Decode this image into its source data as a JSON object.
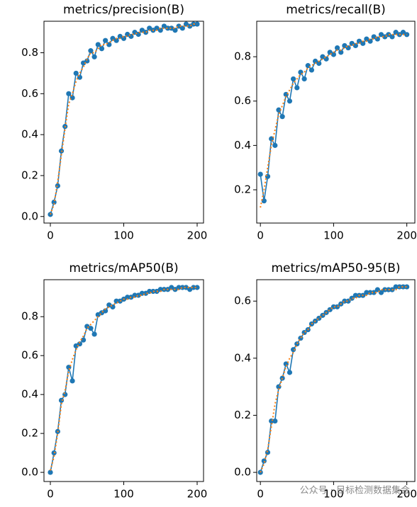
{
  "chart_data": [
    {
      "type": "line",
      "title": "metrics/precision(B)",
      "x": [
        0,
        5,
        10,
        15,
        20,
        25,
        30,
        35,
        40,
        45,
        50,
        55,
        60,
        65,
        70,
        75,
        80,
        85,
        90,
        95,
        100,
        105,
        110,
        115,
        120,
        125,
        130,
        135,
        140,
        145,
        150,
        155,
        160,
        165,
        170,
        175,
        180,
        185,
        190,
        195,
        200
      ],
      "series": [
        {
          "color": "#1f77b4",
          "marker": "o",
          "values": [
            0.01,
            0.07,
            0.15,
            0.32,
            0.44,
            0.6,
            0.58,
            0.7,
            0.68,
            0.75,
            0.76,
            0.81,
            0.78,
            0.84,
            0.82,
            0.86,
            0.84,
            0.87,
            0.86,
            0.88,
            0.87,
            0.89,
            0.88,
            0.9,
            0.89,
            0.91,
            0.9,
            0.92,
            0.91,
            0.92,
            0.91,
            0.93,
            0.92,
            0.92,
            0.91,
            0.93,
            0.92,
            0.94,
            0.93,
            0.94,
            0.94
          ]
        },
        {
          "color": "#ff7f0e",
          "linestyle": "dotted",
          "values": [
            0.01,
            0.06,
            0.17,
            0.3,
            0.43,
            0.55,
            0.6,
            0.66,
            0.7,
            0.73,
            0.77,
            0.8,
            0.8,
            0.82,
            0.84,
            0.84,
            0.85,
            0.86,
            0.87,
            0.87,
            0.88,
            0.88,
            0.89,
            0.89,
            0.9,
            0.9,
            0.9,
            0.91,
            0.91,
            0.91,
            0.92,
            0.92,
            0.92,
            0.92,
            0.92,
            0.93,
            0.93,
            0.93,
            0.93,
            0.94,
            0.94
          ]
        }
      ],
      "xlim": [
        -8.7,
        208.7
      ],
      "xticks": [
        0,
        100,
        200
      ],
      "ylim": [
        -0.032,
        0.954
      ],
      "yticks": [
        {
          "value": 0,
          "label": "0.0"
        },
        0.2,
        0.4,
        0.6,
        0.8
      ],
      "grid": false
    },
    {
      "type": "line",
      "title": "metrics/recall(B)",
      "x": [
        0,
        5,
        10,
        15,
        20,
        25,
        30,
        35,
        40,
        45,
        50,
        55,
        60,
        65,
        70,
        75,
        80,
        85,
        90,
        95,
        100,
        105,
        110,
        115,
        120,
        125,
        130,
        135,
        140,
        145,
        150,
        155,
        160,
        165,
        170,
        175,
        180,
        185,
        190,
        195,
        200
      ],
      "series": [
        {
          "color": "#1f77b4",
          "marker": "o",
          "values": [
            0.27,
            0.15,
            0.26,
            0.43,
            0.4,
            0.56,
            0.53,
            0.63,
            0.6,
            0.7,
            0.66,
            0.73,
            0.7,
            0.76,
            0.74,
            0.78,
            0.77,
            0.8,
            0.79,
            0.82,
            0.81,
            0.84,
            0.82,
            0.85,
            0.84,
            0.86,
            0.85,
            0.87,
            0.86,
            0.88,
            0.87,
            0.89,
            0.88,
            0.9,
            0.89,
            0.9,
            0.89,
            0.91,
            0.9,
            0.91,
            0.9
          ]
        },
        {
          "color": "#ff7f0e",
          "linestyle": "dotted",
          "values": [
            0.12,
            0.2,
            0.3,
            0.4,
            0.47,
            0.54,
            0.58,
            0.62,
            0.65,
            0.68,
            0.7,
            0.72,
            0.73,
            0.75,
            0.76,
            0.77,
            0.78,
            0.79,
            0.8,
            0.81,
            0.82,
            0.83,
            0.83,
            0.84,
            0.85,
            0.85,
            0.86,
            0.86,
            0.87,
            0.87,
            0.88,
            0.88,
            0.89,
            0.89,
            0.89,
            0.9,
            0.9,
            0.9,
            0.9,
            0.9,
            0.9
          ]
        }
      ],
      "xlim": [
        -5,
        211
      ],
      "xticks": [
        0,
        100,
        200
      ],
      "ylim": [
        0.05,
        0.96
      ],
      "yticks": [
        0.2,
        0.4,
        0.6,
        0.8
      ],
      "grid": false
    },
    {
      "type": "line",
      "title": "metrics/mAP50(B)",
      "x": [
        0,
        5,
        10,
        15,
        20,
        25,
        30,
        35,
        40,
        45,
        50,
        55,
        60,
        65,
        70,
        75,
        80,
        85,
        90,
        95,
        100,
        105,
        110,
        115,
        120,
        125,
        130,
        135,
        140,
        145,
        150,
        155,
        160,
        165,
        170,
        175,
        180,
        185,
        190,
        195,
        200
      ],
      "series": [
        {
          "color": "#1f77b4",
          "marker": "o",
          "values": [
            0.0,
            0.1,
            0.21,
            0.37,
            0.4,
            0.54,
            0.47,
            0.65,
            0.66,
            0.68,
            0.75,
            0.74,
            0.71,
            0.81,
            0.82,
            0.83,
            0.86,
            0.85,
            0.88,
            0.88,
            0.89,
            0.9,
            0.9,
            0.91,
            0.91,
            0.92,
            0.92,
            0.93,
            0.93,
            0.93,
            0.94,
            0.94,
            0.94,
            0.95,
            0.94,
            0.95,
            0.95,
            0.95,
            0.94,
            0.95,
            0.95
          ]
        },
        {
          "color": "#ff7f0e",
          "linestyle": "dotted",
          "values": [
            0.01,
            0.08,
            0.2,
            0.35,
            0.42,
            0.52,
            0.58,
            0.63,
            0.67,
            0.7,
            0.74,
            0.76,
            0.78,
            0.8,
            0.82,
            0.84,
            0.85,
            0.86,
            0.87,
            0.88,
            0.89,
            0.89,
            0.9,
            0.9,
            0.91,
            0.91,
            0.92,
            0.92,
            0.93,
            0.93,
            0.93,
            0.94,
            0.94,
            0.94,
            0.94,
            0.94,
            0.95,
            0.95,
            0.95,
            0.95,
            0.95
          ]
        }
      ],
      "xlim": [
        -8.7,
        208.7
      ],
      "xticks": [
        0,
        100,
        200
      ],
      "ylim": [
        -0.047,
        0.99
      ],
      "yticks": [
        {
          "value": 0,
          "label": "0.0"
        },
        0.2,
        0.4,
        0.6,
        0.8
      ],
      "grid": false
    },
    {
      "type": "line",
      "title": "metrics/mAP50-95(B)",
      "x": [
        0,
        5,
        10,
        15,
        20,
        25,
        30,
        35,
        40,
        45,
        50,
        55,
        60,
        65,
        70,
        75,
        80,
        85,
        90,
        95,
        100,
        105,
        110,
        115,
        120,
        125,
        130,
        135,
        140,
        145,
        150,
        155,
        160,
        165,
        170,
        175,
        180,
        185,
        190,
        195,
        200
      ],
      "series": [
        {
          "color": "#1f77b4",
          "marker": "o",
          "values": [
            0.0,
            0.04,
            0.07,
            0.18,
            0.18,
            0.3,
            0.33,
            0.38,
            0.35,
            0.43,
            0.45,
            0.47,
            0.49,
            0.5,
            0.52,
            0.53,
            0.54,
            0.55,
            0.56,
            0.57,
            0.58,
            0.58,
            0.59,
            0.6,
            0.6,
            0.61,
            0.62,
            0.62,
            0.62,
            0.63,
            0.63,
            0.63,
            0.64,
            0.63,
            0.64,
            0.64,
            0.64,
            0.65,
            0.65,
            0.65,
            0.65
          ]
        },
        {
          "color": "#ff7f0e",
          "linestyle": "dotted",
          "values": [
            0.0,
            0.03,
            0.08,
            0.16,
            0.24,
            0.29,
            0.33,
            0.37,
            0.4,
            0.42,
            0.45,
            0.47,
            0.49,
            0.5,
            0.52,
            0.53,
            0.54,
            0.55,
            0.56,
            0.57,
            0.58,
            0.58,
            0.59,
            0.6,
            0.6,
            0.61,
            0.61,
            0.62,
            0.62,
            0.62,
            0.63,
            0.63,
            0.63,
            0.64,
            0.64,
            0.64,
            0.64,
            0.64,
            0.65,
            0.65,
            0.65
          ]
        }
      ],
      "xlim": [
        -5,
        211
      ],
      "xticks": [
        0,
        100,
        200
      ],
      "ylim": [
        -0.032,
        0.675
      ],
      "yticks": [
        {
          "value": 0,
          "label": "0.0"
        },
        0.2,
        0.4,
        0.6
      ],
      "grid": false
    }
  ],
  "watermark": "公众号 · 目标检测数据集会"
}
